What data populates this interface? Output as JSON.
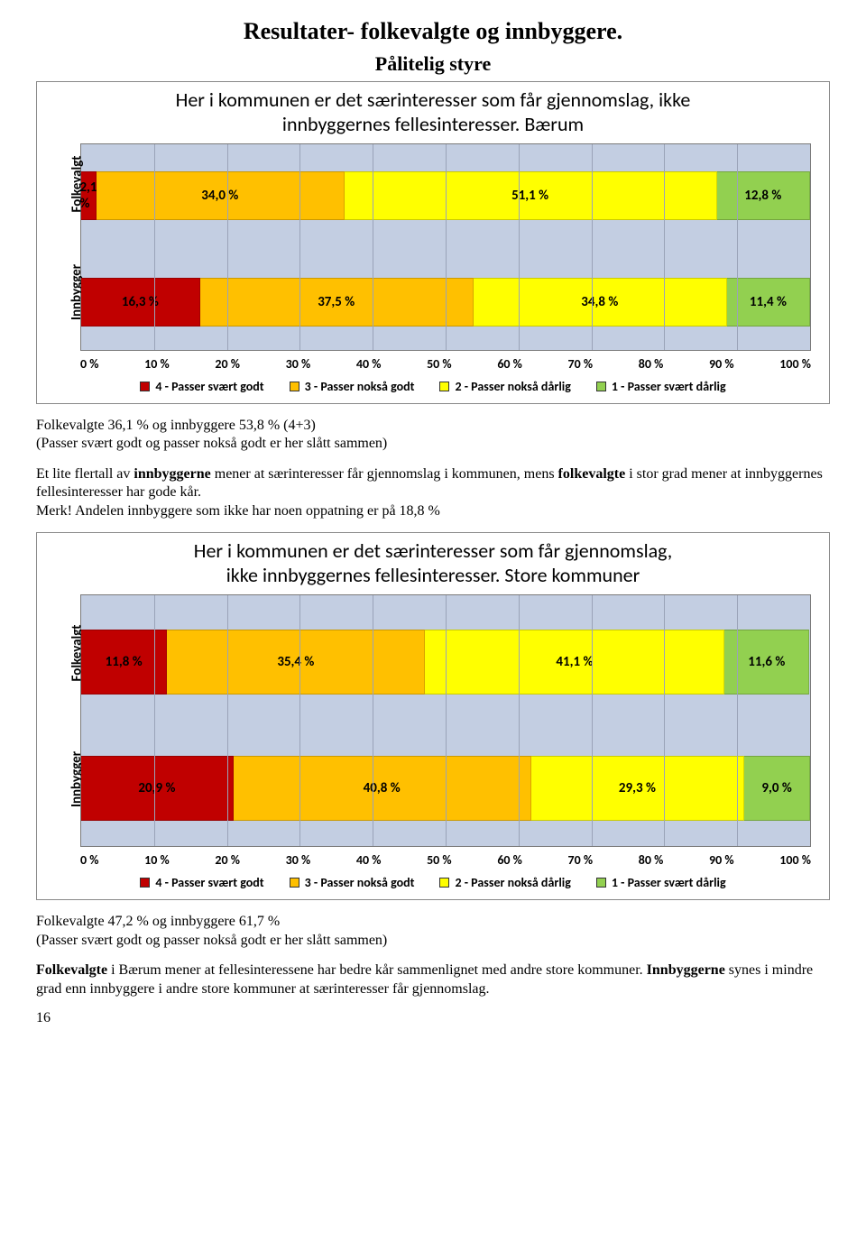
{
  "page": {
    "number": "16"
  },
  "heading": {
    "title": "Resultater- folkevalgte og innbyggere.",
    "subtitle": "Pålitelig styre"
  },
  "colors": {
    "c4": "#c00000",
    "c3": "#ffc000",
    "c2": "#ffff00",
    "c1": "#92d050",
    "plot_bg": "#c3cee2",
    "grid": "#9aa3b8"
  },
  "legend": {
    "l4": "4 - Passer svært godt",
    "l3": "3 - Passer nokså godt",
    "l2": "2 - Passer nokså dårlig",
    "l1": "1 - Passer svært dårlig"
  },
  "chart1": {
    "title_line1": "Her i kommunen er det særinteresser som får gjennomslag, ikke",
    "title_line2": "innbyggernes fellesinteresser. Bærum",
    "row_a": {
      "y_label": "Folkevalgt",
      "s4": {
        "pct": 2.1,
        "label": "2,1 %"
      },
      "s3": {
        "pct": 34.0,
        "label": "34,0 %"
      },
      "s2": {
        "pct": 51.1,
        "label": "51,1 %"
      },
      "s1": {
        "pct": 12.8,
        "label": "12,8 %"
      }
    },
    "row_b": {
      "y_label": "Innbygger",
      "s4": {
        "pct": 16.3,
        "label": "16,3 %"
      },
      "s3": {
        "pct": 37.5,
        "label": "37,5 %"
      },
      "s2": {
        "pct": 34.8,
        "label": "34,8 %"
      },
      "s1": {
        "pct": 11.4,
        "label": "11,4 %"
      }
    },
    "xticks": [
      "0 %",
      "10 %",
      "20 %",
      "30 %",
      "40 %",
      "50 %",
      "60 %",
      "70 %",
      "80 %",
      "90 %",
      "100 %"
    ]
  },
  "text1": {
    "line1": "Folkevalgte 36,1 % og innbyggere 53,8 % (4+3)",
    "line2": "(Passer svært godt og passer nokså godt er her slått sammen)",
    "para1a": "Et lite flertall av ",
    "para1b": "innbyggerne",
    "para1c": " mener at særinteresser får gjennomslag i kommunen, mens ",
    "para1d": "folkevalgte",
    "para1e": " i stor grad mener at innbyggernes fellesinteresser har gode kår.",
    "para2": "Merk! Andelen innbyggere som ikke har noen oppatning er på 18,8 %"
  },
  "chart2": {
    "title_line1": "Her i kommunen er det særinteresser som får gjennomslag,",
    "title_line2": "ikke innbyggernes fellesinteresser. Store kommuner",
    "row_a": {
      "y_label": "Folkevalgt",
      "s4": {
        "pct": 11.8,
        "label": "11,8 %"
      },
      "s3": {
        "pct": 35.4,
        "label": "35,4 %"
      },
      "s2": {
        "pct": 41.1,
        "label": "41,1 %"
      },
      "s1": {
        "pct": 11.6,
        "label": "11,6 %"
      }
    },
    "row_b": {
      "y_label": "Innbygger",
      "s4": {
        "pct": 20.9,
        "label": "20,9 %"
      },
      "s3": {
        "pct": 40.8,
        "label": "40,8 %"
      },
      "s2": {
        "pct": 29.3,
        "label": "29,3 %"
      },
      "s1": {
        "pct": 9.0,
        "label": "9,0 %"
      }
    },
    "xticks": [
      "0 %",
      "10 %",
      "20 %",
      "30 %",
      "40 %",
      "50 %",
      "60 %",
      "70 %",
      "80 %",
      "90 %",
      "100 %"
    ]
  },
  "text2": {
    "line1": "Folkevalgte 47,2 % og innbyggere 61,7 %",
    "line2": "(Passer svært godt og passer nokså godt er her slått sammen)",
    "para1a": "Folkevalgte",
    "para1b": " i Bærum mener at fellesinteressene har bedre kår sammenlignet med andre store kommuner. ",
    "para1c": "Innbyggerne",
    "para1d": " synes i mindre grad enn innbyggere i andre store kommuner at særinteresser får gjennomslag."
  }
}
